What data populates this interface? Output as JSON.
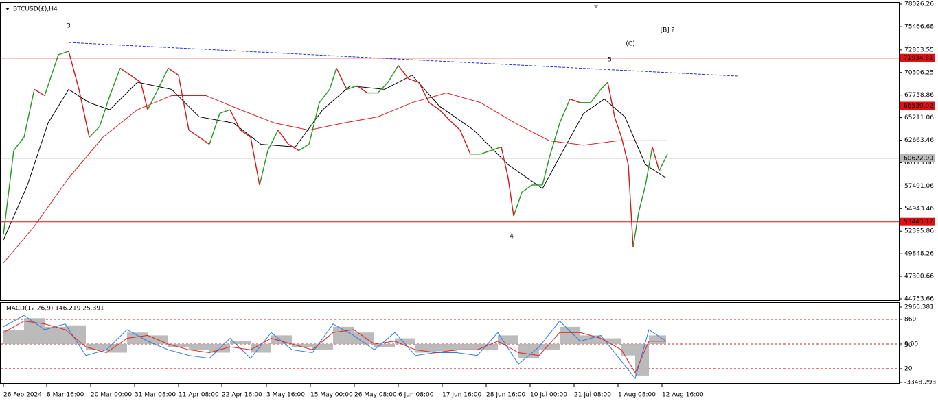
{
  "chart_data": [
    {
      "type": "line",
      "title": "BTCUSD(£),H4",
      "xlim": [
        0,
        1305
      ],
      "ylim": [
        44753.66,
        78026.26
      ],
      "yticks": [
        78026.26,
        75466.68,
        72853.55,
        70306.25,
        67758.86,
        65211.06,
        62663.46,
        60115.86,
        57491.06,
        54943.46,
        52395.86,
        49848.26,
        47300.66,
        44753.66
      ],
      "up_color": "#1f9a1f",
      "down_color": "#d01818",
      "x": [
        5,
        20,
        35,
        50,
        65,
        85,
        100,
        115,
        130,
        145,
        160,
        175,
        190,
        205,
        215,
        230,
        245,
        260,
        275,
        290,
        305,
        320,
        335,
        350,
        365,
        378,
        390,
        405,
        420,
        435,
        450,
        465,
        480,
        490,
        505,
        520,
        535,
        550,
        565,
        580,
        595,
        610,
        625,
        640,
        655,
        670,
        685,
        700,
        715,
        730,
        740,
        748,
        760,
        775,
        790,
        800,
        815,
        830,
        845,
        860,
        875,
        885,
        895,
        905,
        915,
        922,
        930,
        940,
        950,
        960,
        972
      ],
      "values": [
        52000,
        61500,
        63000,
        68400,
        67700,
        72300,
        72700,
        68400,
        63000,
        64200,
        67700,
        70800,
        70000,
        69200,
        66100,
        68400,
        70800,
        70000,
        63800,
        63000,
        62200,
        65700,
        66100,
        63800,
        63000,
        57600,
        61500,
        63800,
        62200,
        61500,
        62200,
        66900,
        68400,
        70800,
        68400,
        68800,
        68000,
        68000,
        69200,
        71100,
        69600,
        69200,
        66900,
        66100,
        64900,
        63800,
        61100,
        61100,
        61500,
        61900,
        58400,
        54100,
        56800,
        57600,
        57600,
        60700,
        64600,
        67300,
        66900,
        66900,
        68400,
        69200,
        65300,
        63000,
        59900,
        50600,
        54500,
        57600,
        61900,
        59200,
        61100
      ],
      "series": [
        {
          "color": "#d42020",
          "x": [
            5,
            50,
            100,
            150,
            200,
            250,
            300,
            350,
            400,
            450,
            500,
            550,
            600,
            650,
            700,
            750,
            800,
            850,
            900,
            970
          ],
          "values": [
            48800,
            52950,
            58400,
            63000,
            66100,
            67700,
            67700,
            66100,
            64600,
            63800,
            64600,
            65300,
            66900,
            68000,
            66900,
            64600,
            62600,
            62100,
            62600,
            62600
          ]
        },
        {
          "color": "#000000",
          "x": [
            5,
            40,
            70,
            100,
            130,
            160,
            200,
            250,
            290,
            340,
            380,
            430,
            470,
            510,
            560,
            600,
            640,
            690,
            740,
            790,
            820,
            850,
            880,
            910,
            940,
            970
          ],
          "values": [
            51400,
            57600,
            64600,
            68400,
            66900,
            66100,
            69200,
            68400,
            65300,
            64600,
            62200,
            61900,
            66100,
            68800,
            68400,
            70000,
            66500,
            63800,
            59900,
            57200,
            61500,
            65700,
            67300,
            65300,
            59900,
            58400
          ]
        },
        {
          "color": "#2030c8",
          "dashed": true,
          "x": [
            100,
            1075
          ],
          "values": [
            73690,
            69900
          ]
        }
      ],
      "levels": [
        {
          "value": 71934.81,
          "color": "#e01010"
        },
        {
          "value": 66539.02,
          "color": "#e01010"
        },
        {
          "value": 60622,
          "label": "60622.00",
          "color": "#b8b8b8"
        },
        {
          "value": 53443.17,
          "color": "#e01010"
        }
      ],
      "annotations": [
        {
          "text": "3",
          "color": "#1c1cc8"
        },
        {
          "text": "4",
          "color": "#1c1cc8"
        },
        {
          "text": "5",
          "color": "#1c1cc8"
        },
        {
          "text": "(C)",
          "color": "#e01010"
        },
        {
          "text": "[B] ?",
          "color": "#000000"
        }
      ]
    },
    {
      "type": "macd",
      "title": "MACD(12,26,9) 146.219 25.391",
      "xlim": [
        0,
        1305
      ],
      "ylim": [
        -1340,
        1290
      ],
      "yticks": [
        {
          "value": 1290,
          "label": "2966.381"
        },
        860,
        {
          "value": 0,
          "label": "0.00"
        },
        {
          "value": -40,
          "label": "50"
        },
        {
          "value": -860,
          "label": "20"
        },
        {
          "value": -1340,
          "label": "-3348.293"
        }
      ],
      "levels": [
        860,
        0,
        -860
      ],
      "x": [
        5,
        35,
        65,
        95,
        125,
        155,
        185,
        215,
        245,
        275,
        305,
        335,
        365,
        395,
        425,
        455,
        485,
        515,
        545,
        575,
        605,
        635,
        665,
        695,
        725,
        755,
        785,
        815,
        845,
        875,
        905,
        925,
        945,
        970
      ],
      "histogram": {
        "color": "#b4b4b4",
        "values": [
          500,
          900,
          600,
          650,
          -200,
          -300,
          400,
          300,
          -100,
          -200,
          -300,
          100,
          -300,
          300,
          -100,
          -200,
          600,
          400,
          -100,
          200,
          -300,
          -250,
          -200,
          -200,
          300,
          -500,
          -200,
          600,
          300,
          200,
          -400,
          -1100,
          300,
          0
        ]
      },
      "macd": {
        "color": "#2a7ee0",
        "values": [
          600,
          1000,
          500,
          700,
          -400,
          -200,
          500,
          100,
          -200,
          -400,
          -500,
          200,
          -500,
          400,
          -200,
          -300,
          700,
          300,
          -200,
          400,
          -400,
          -300,
          -300,
          -400,
          400,
          -700,
          -100,
          800,
          100,
          300,
          -600,
          -1200,
          500,
          100
        ]
      },
      "signal": {
        "color": "#e02020",
        "values": [
          400,
          800,
          700,
          500,
          -100,
          -300,
          200,
          300,
          0,
          -200,
          -300,
          -100,
          -200,
          200,
          0,
          -200,
          400,
          500,
          0,
          100,
          -200,
          -300,
          -200,
          -200,
          100,
          -300,
          -400,
          400,
          400,
          200,
          -200,
          -1000,
          100,
          100
        ]
      },
      "xticks": [
        {
          "value": 5,
          "label": "26 Feb 2024"
        },
        {
          "value": 68,
          "label": "8 Mar 16:00"
        },
        {
          "value": 132,
          "label": "20 Mar 00:00"
        },
        {
          "value": 196,
          "label": "31 Mar 08:00"
        },
        {
          "value": 260,
          "label": "11 Apr 08:00"
        },
        {
          "value": 323,
          "label": "22 Apr 16:00"
        },
        {
          "value": 388,
          "label": "3 May 16:00"
        },
        {
          "value": 452,
          "label": "15 May 00:00"
        },
        {
          "value": 516,
          "label": "26 May 08:00"
        },
        {
          "value": 580,
          "label": "6 Jun 08:00"
        },
        {
          "value": 644,
          "label": "17 Jun 16:00"
        },
        {
          "value": 708,
          "label": "28 Jun 16:00"
        },
        {
          "value": 772,
          "label": "10 Jul 00:00"
        },
        {
          "value": 836,
          "label": "21 Jul 08:00"
        },
        {
          "value": 900,
          "label": "1 Aug 08:00"
        },
        {
          "value": 964,
          "label": "12 Aug 16:00"
        }
      ]
    }
  ]
}
